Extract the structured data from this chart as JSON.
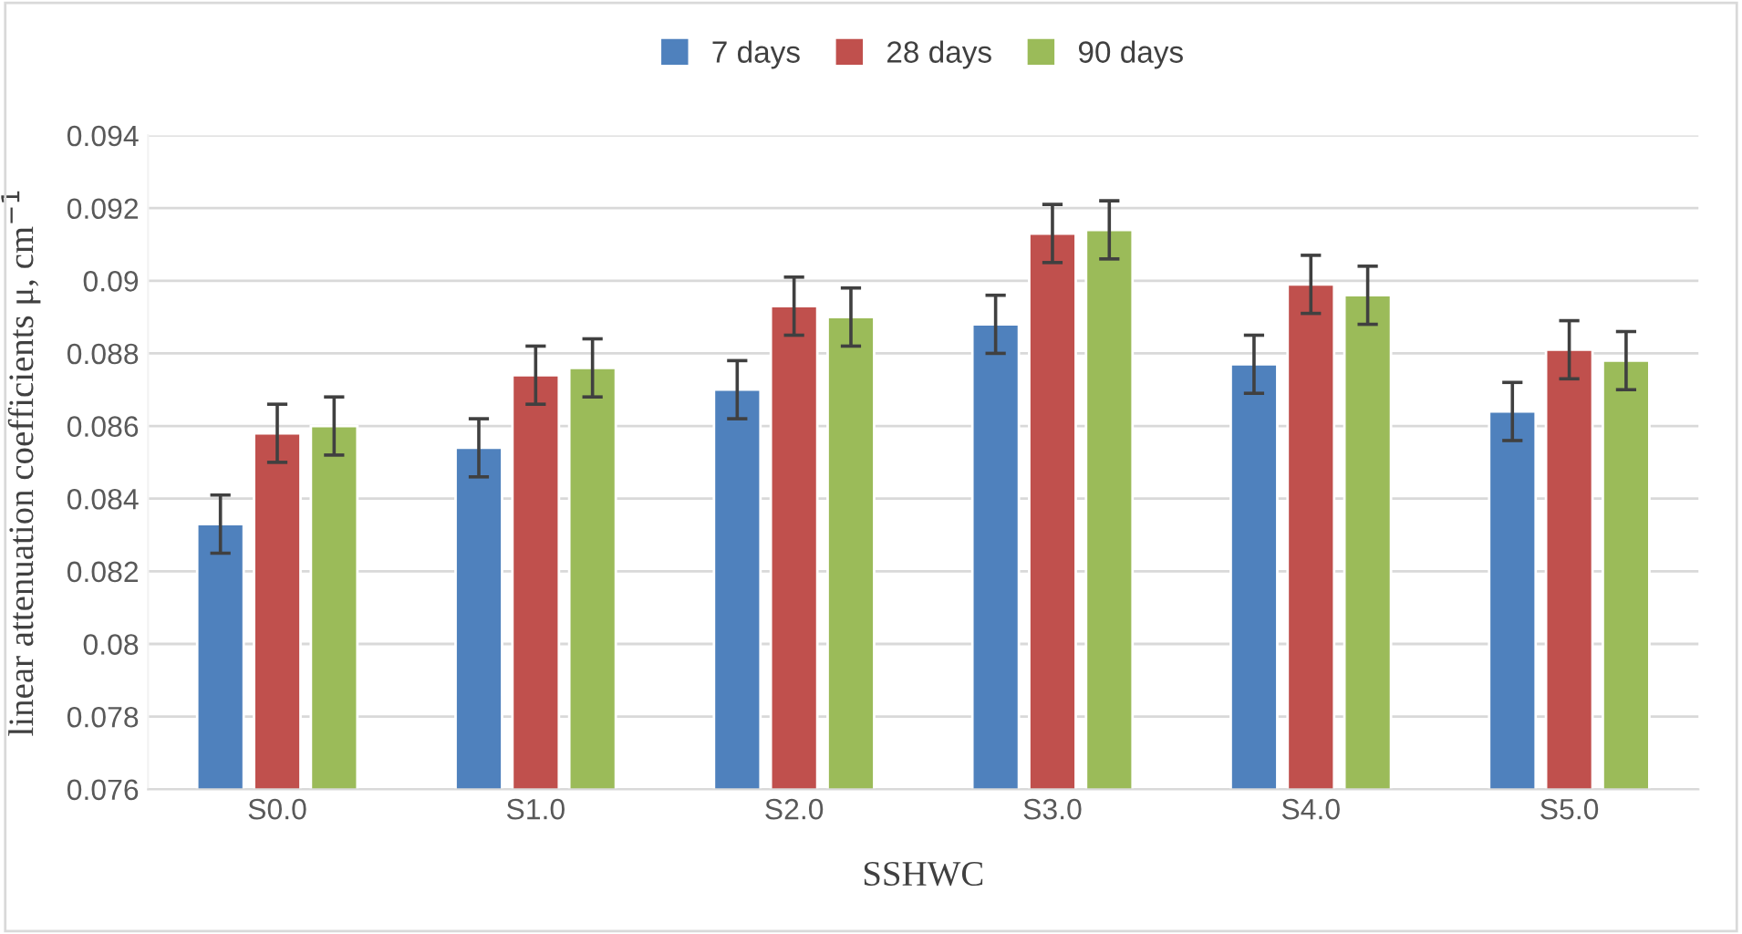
{
  "chart_data": {
    "type": "bar",
    "xlabel": "SSHWC",
    "ylabel": "linear attenuation coefficients μ, cm$^{−1}$",
    "categories": [
      "S0.0",
      "S1.0",
      "S2.0",
      "S3.0",
      "S4.0",
      "S5.0"
    ],
    "series": [
      {
        "name": "7 days",
        "color": "#4f81bd",
        "values": [
          0.0833,
          0.0854,
          0.087,
          0.0888,
          0.0877,
          0.0864
        ],
        "errors": [
          0.0008,
          0.0008,
          0.0008,
          0.0008,
          0.0008,
          0.0008
        ]
      },
      {
        "name": "28 days",
        "color": "#c0504d",
        "values": [
          0.0858,
          0.0874,
          0.0893,
          0.0913,
          0.0899,
          0.0881
        ],
        "errors": [
          0.0008,
          0.0008,
          0.0008,
          0.0008,
          0.0008,
          0.0008
        ]
      },
      {
        "name": "90 days",
        "color": "#9bbb59",
        "values": [
          0.086,
          0.0876,
          0.089,
          0.0914,
          0.0896,
          0.0878
        ],
        "errors": [
          0.0008,
          0.0008,
          0.0008,
          0.0008,
          0.0008,
          0.0008
        ]
      }
    ],
    "ylim": [
      0.076,
      0.094
    ],
    "yticks": [
      0.076,
      0.078,
      0.08,
      0.082,
      0.084,
      0.086,
      0.088,
      0.09,
      0.092,
      0.094
    ],
    "grid": "y",
    "legend": "top"
  }
}
